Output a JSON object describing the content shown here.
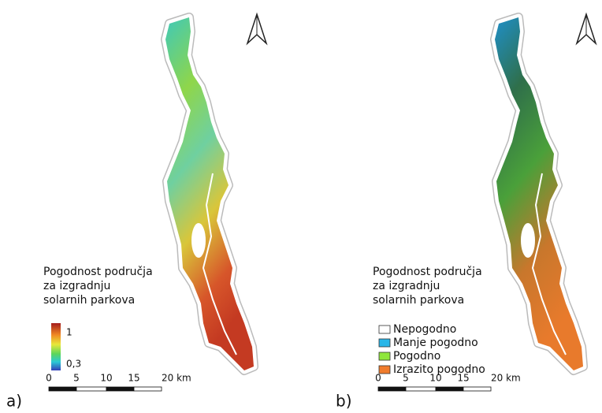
{
  "panels": [
    {
      "label": "a)",
      "legend": {
        "title": [
          "Pogodnost područja",
          "za izgradnju",
          "solarnih parkova"
        ],
        "max_label": "1",
        "min_label": "0,3"
      },
      "scale": {
        "labels": [
          "0",
          "5",
          "10",
          "15",
          "20 km"
        ]
      }
    },
    {
      "label": "b)",
      "legend": {
        "title": [
          "Pogodnost područja",
          "za izgradnju",
          "solarnih parkova"
        ],
        "entries": [
          {
            "label": "Nepogodno",
            "color": "#ffffff"
          },
          {
            "label": "Manje pogodno",
            "color": "#29b6e8"
          },
          {
            "label": "Pogodno",
            "color": "#8fe63c"
          },
          {
            "label": "Izrazito pogodno",
            "color": "#f07b2c"
          }
        ]
      },
      "scale": {
        "labels": [
          "0",
          "5",
          "10",
          "15",
          "20 km"
        ]
      }
    }
  ]
}
